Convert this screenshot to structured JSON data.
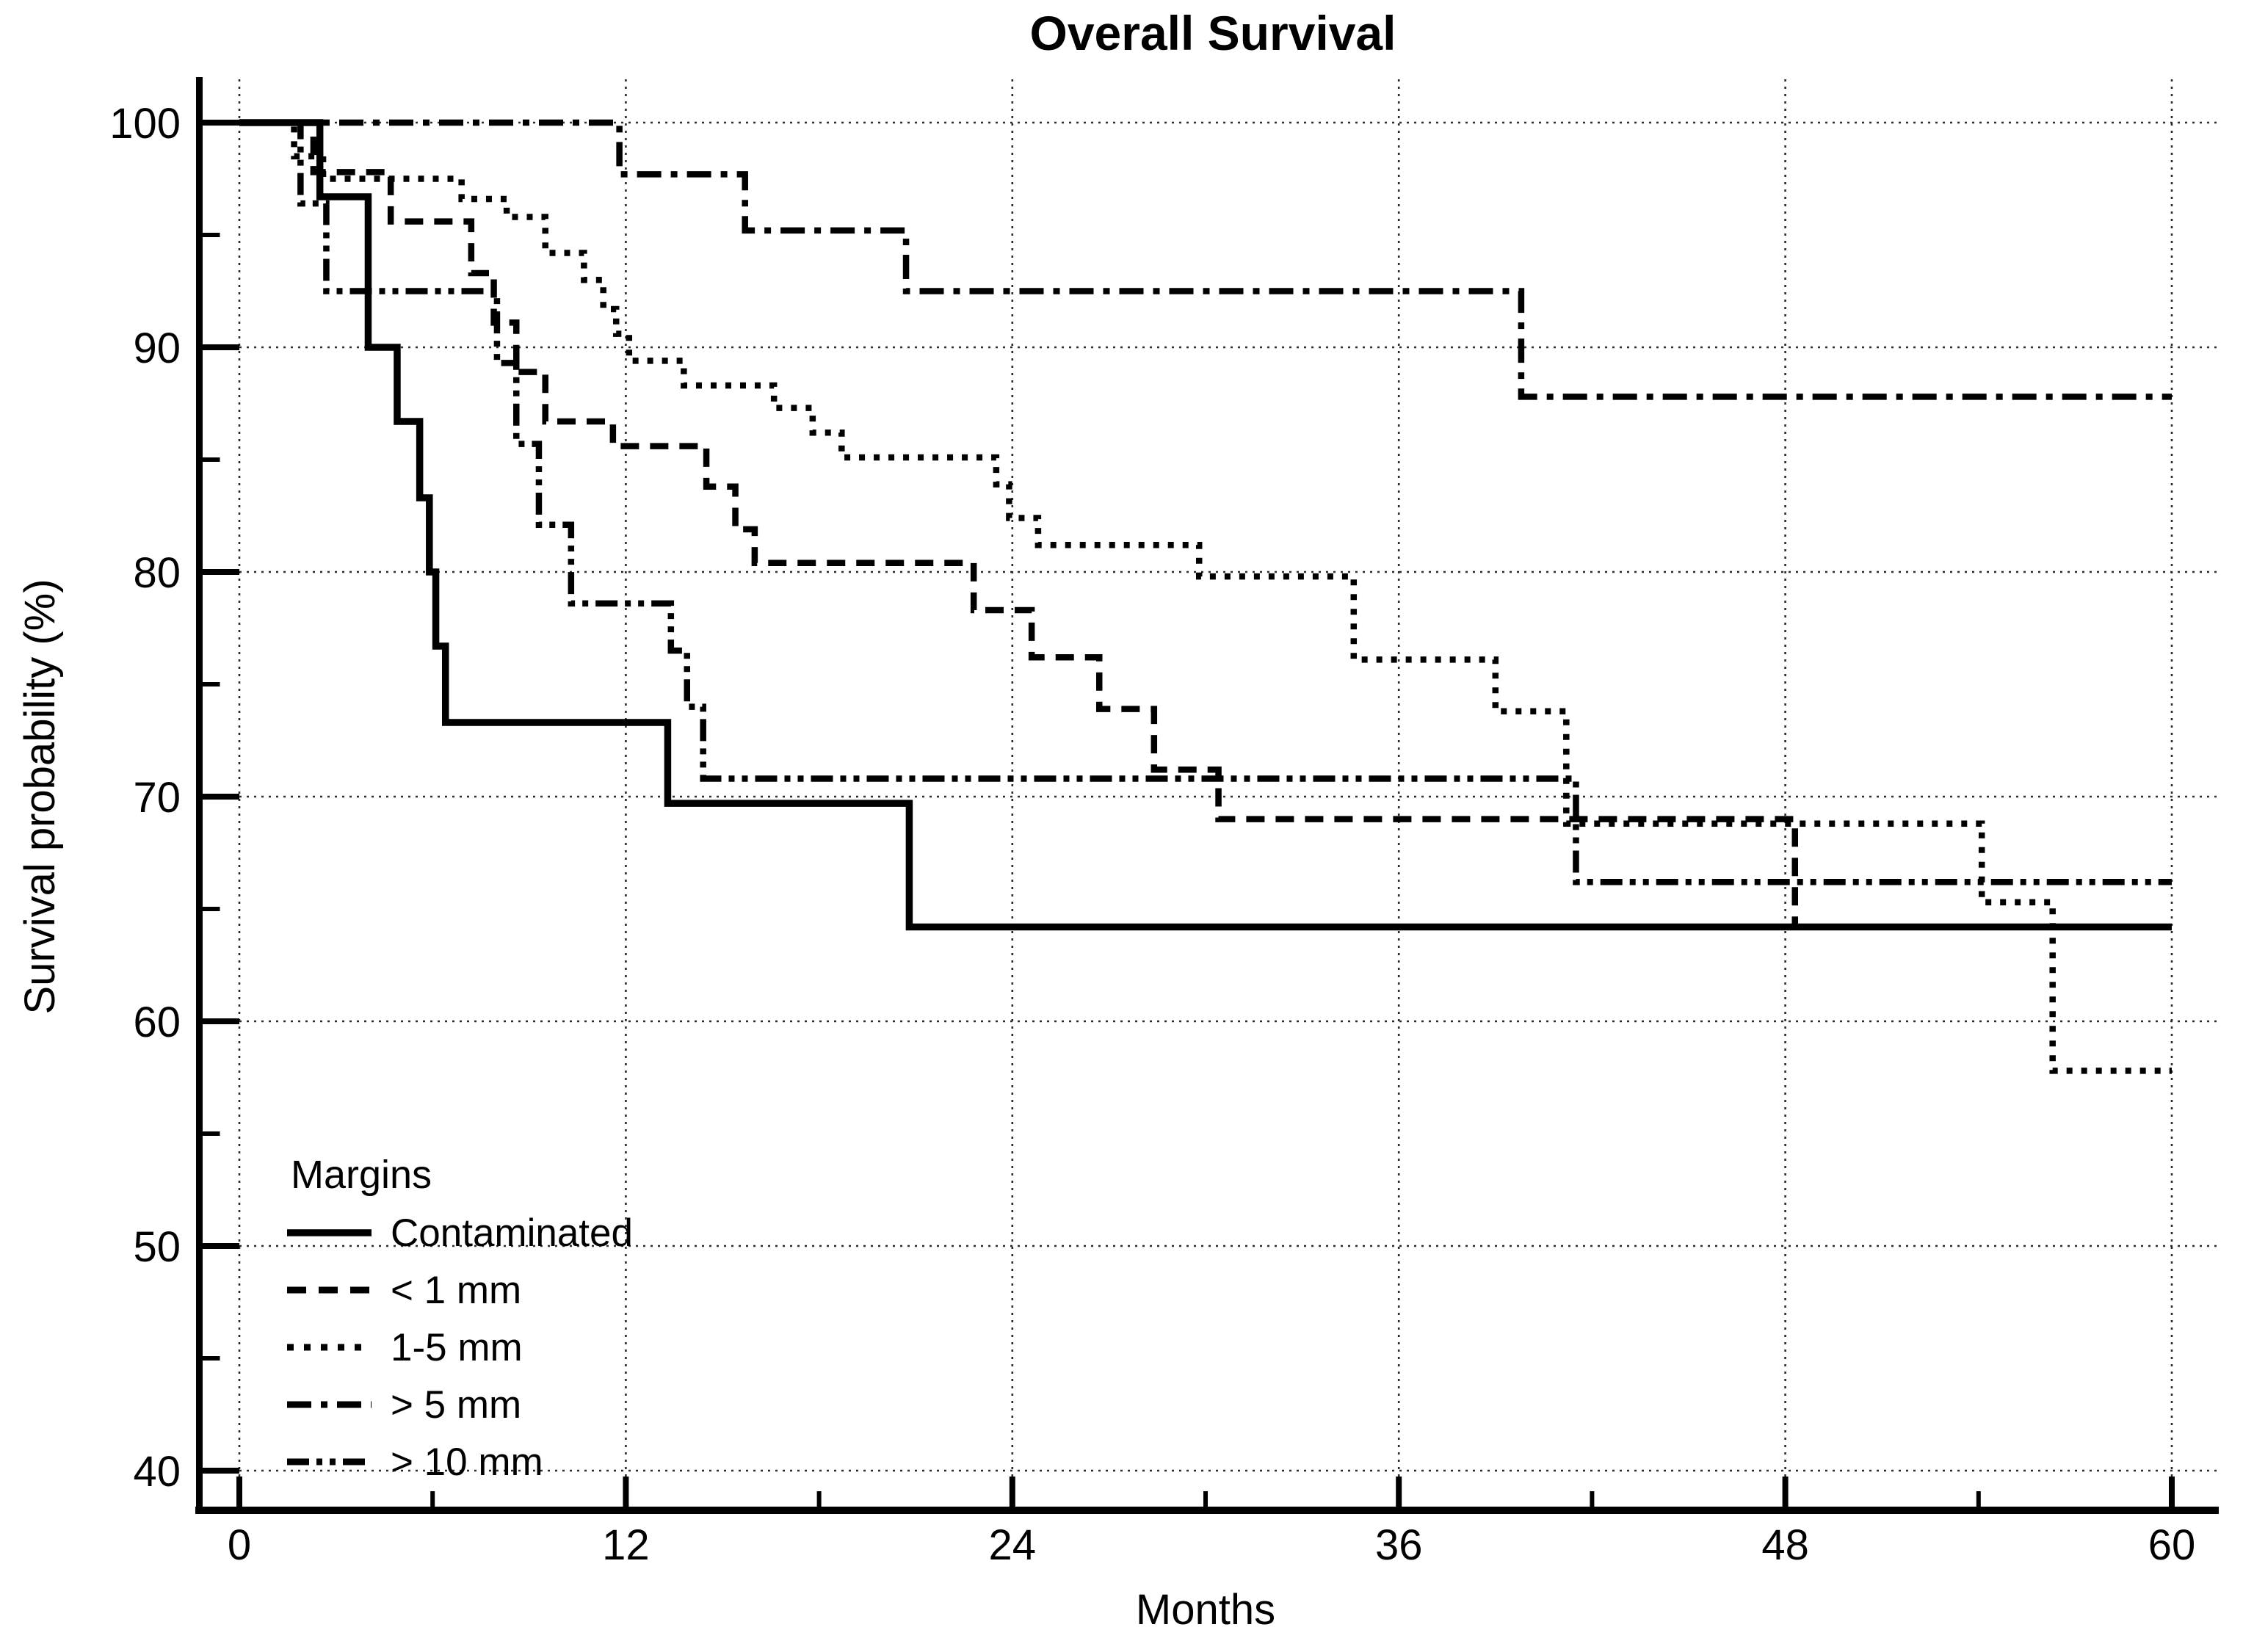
{
  "title": "Overall Survival",
  "x_axis": {
    "label": "Months",
    "min": 0,
    "max": 60,
    "major_ticks": [
      0,
      12,
      24,
      36,
      48,
      60
    ],
    "minor_ticks": [
      6,
      18,
      30,
      42,
      54
    ]
  },
  "y_axis": {
    "label": "Survival probability (%)",
    "min": 40,
    "max": 100,
    "major_ticks": [
      100,
      90,
      80,
      70,
      60,
      50,
      40
    ],
    "minor_ticks": [
      95,
      85,
      75,
      65,
      55,
      45
    ]
  },
  "legend": {
    "title": "Margins",
    "items": [
      {
        "label": "Contaminated",
        "style": "solid"
      },
      {
        "label": "< 1 mm",
        "style": "dashed"
      },
      {
        "label": "1-5 mm",
        "style": "dotted"
      },
      {
        "label": "> 5 mm",
        "style": "dashdot"
      },
      {
        "label": "> 10 mm",
        "style": "dashdotdot"
      }
    ]
  },
  "colors": {
    "foreground": "#000000",
    "background": "#ffffff",
    "gridline": "#2b2b2b"
  },
  "chart_data": {
    "type": "line",
    "step": true,
    "title": "Overall Survival",
    "xlabel": "Months",
    "ylabel": "Survival probability (%)",
    "xlim": [
      0,
      60
    ],
    "ylim": [
      40,
      100
    ],
    "grid": "dotted gridlines at every major tick, both axes",
    "legend_position": "inside lower-left",
    "series": [
      {
        "name": "Contaminated",
        "style": "solid",
        "points": [
          [
            0,
            100
          ],
          [
            2.5,
            96.7
          ],
          [
            4.0,
            90.0
          ],
          [
            4.9,
            86.7
          ],
          [
            5.6,
            83.3
          ],
          [
            5.9,
            80.0
          ],
          [
            6.1,
            76.7
          ],
          [
            6.4,
            73.3
          ],
          [
            13.3,
            69.7
          ],
          [
            20.8,
            64.2
          ],
          [
            60,
            64.2
          ]
        ]
      },
      {
        "name": "< 1 mm",
        "style": "dashed",
        "points": [
          [
            0,
            100
          ],
          [
            2.3,
            97.8
          ],
          [
            4.7,
            95.6
          ],
          [
            7.2,
            93.3
          ],
          [
            7.9,
            91.1
          ],
          [
            8.6,
            88.9
          ],
          [
            9.5,
            86.7
          ],
          [
            11.6,
            85.6
          ],
          [
            14.5,
            83.8
          ],
          [
            15.4,
            81.9
          ],
          [
            16.0,
            80.4
          ],
          [
            22.8,
            78.3
          ],
          [
            24.6,
            76.2
          ],
          [
            26.7,
            73.9
          ],
          [
            28.4,
            71.2
          ],
          [
            30.4,
            69.0
          ],
          [
            48.3,
            64.2
          ],
          [
            60,
            64.2
          ]
        ]
      },
      {
        "name": "1-5 mm",
        "style": "dotted",
        "points": [
          [
            0,
            100
          ],
          [
            1.7,
            98.5
          ],
          [
            2.6,
            97.5
          ],
          [
            6.9,
            96.6
          ],
          [
            8.3,
            95.8
          ],
          [
            9.5,
            94.2
          ],
          [
            10.7,
            93.0
          ],
          [
            11.3,
            91.7
          ],
          [
            11.7,
            90.6
          ],
          [
            12.1,
            89.4
          ],
          [
            13.8,
            88.3
          ],
          [
            16.6,
            87.3
          ],
          [
            17.8,
            86.2
          ],
          [
            18.7,
            85.1
          ],
          [
            23.5,
            83.9
          ],
          [
            23.9,
            82.4
          ],
          [
            24.8,
            81.2
          ],
          [
            29.8,
            79.8
          ],
          [
            34.6,
            76.1
          ],
          [
            39.0,
            73.8
          ],
          [
            41.2,
            68.8
          ],
          [
            54.1,
            65.3
          ],
          [
            56.3,
            57.8
          ],
          [
            60,
            57.8
          ]
        ]
      },
      {
        "name": "> 5 mm",
        "style": "dashdot",
        "points": [
          [
            0,
            100
          ],
          [
            11.8,
            97.7
          ],
          [
            15.7,
            95.2
          ],
          [
            20.7,
            92.5
          ],
          [
            39.8,
            87.8
          ],
          [
            60,
            87.8
          ]
        ]
      },
      {
        "name": "> 10 mm",
        "style": "dashdotdot",
        "points": [
          [
            0,
            100
          ],
          [
            1.9,
            96.4
          ],
          [
            2.7,
            92.5
          ],
          [
            8.0,
            89.3
          ],
          [
            8.6,
            85.7
          ],
          [
            9.3,
            82.1
          ],
          [
            10.3,
            78.6
          ],
          [
            13.4,
            76.5
          ],
          [
            13.9,
            74.0
          ],
          [
            14.4,
            70.8
          ],
          [
            41.5,
            66.2
          ],
          [
            60,
            66.2
          ]
        ]
      }
    ]
  }
}
